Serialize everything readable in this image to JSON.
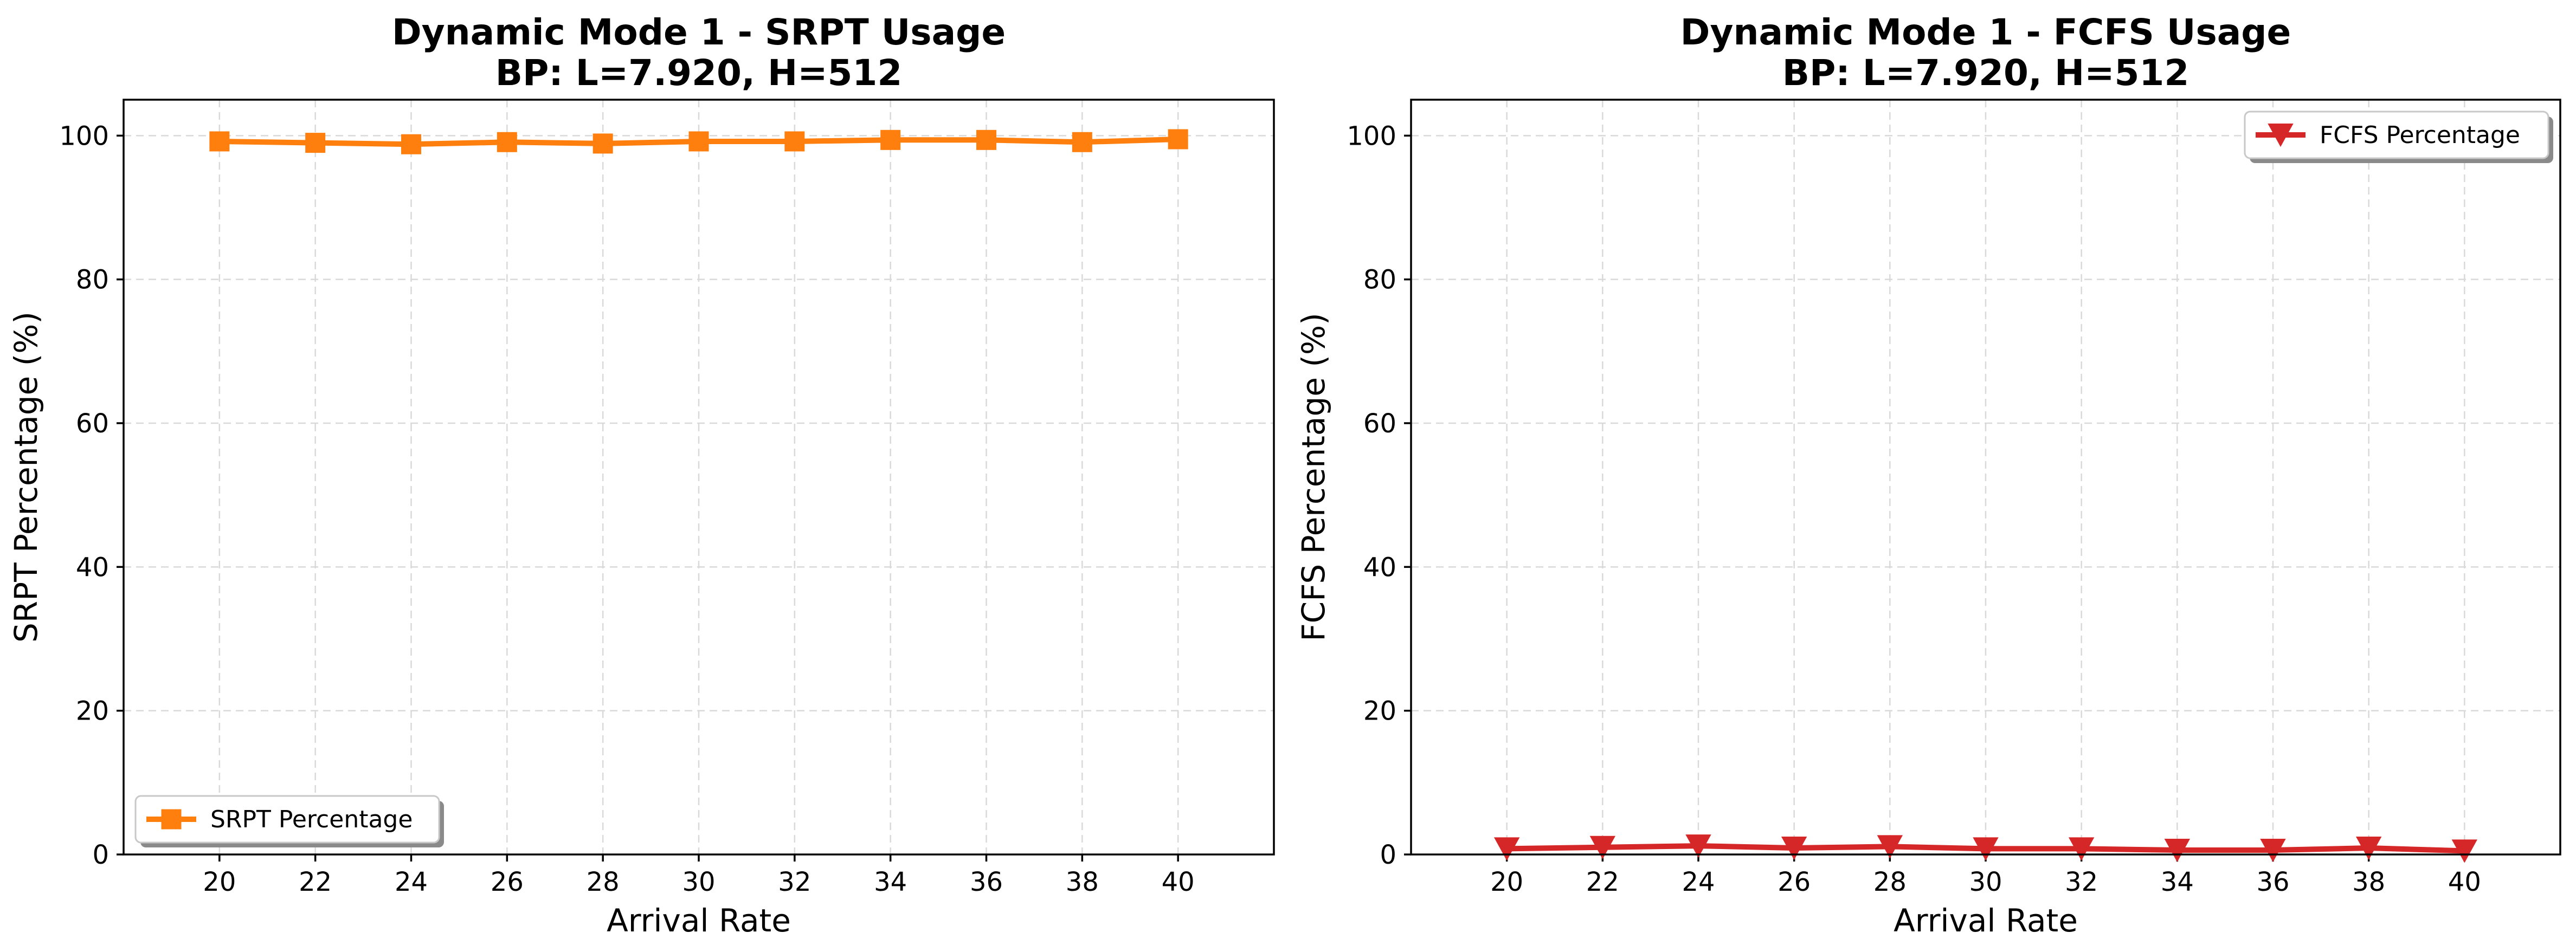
{
  "chart_data": [
    {
      "type": "line",
      "title_line1": "Dynamic Mode 1 - SRPT Usage",
      "title_line2": "BP: L=7.920, H=512",
      "xlabel": "Arrival Rate",
      "ylabel": "SRPT Percentage (%)",
      "x": [
        20,
        22,
        24,
        26,
        28,
        30,
        32,
        34,
        36,
        38,
        40
      ],
      "x_tick_labels": [
        "20",
        "22",
        "24",
        "26",
        "28",
        "30",
        "32",
        "34",
        "36",
        "38",
        "40"
      ],
      "xlim": [
        18,
        42
      ],
      "ylim": [
        0,
        105
      ],
      "y_ticks": [
        0,
        20,
        40,
        60,
        80,
        100
      ],
      "y_tick_labels": [
        "0",
        "20",
        "40",
        "60",
        "80",
        "100"
      ],
      "grid": true,
      "legend_position": "lower-left",
      "series": [
        {
          "name": "SRPT Percentage",
          "color": "#ff7f0e",
          "marker": "square",
          "values": [
            99.2,
            99.0,
            98.8,
            99.1,
            98.9,
            99.2,
            99.2,
            99.4,
            99.4,
            99.1,
            99.5
          ]
        }
      ]
    },
    {
      "type": "line",
      "title_line1": "Dynamic Mode 1 - FCFS Usage",
      "title_line2": "BP: L=7.920, H=512",
      "xlabel": "Arrival Rate",
      "ylabel": "FCFS Percentage (%)",
      "x": [
        20,
        22,
        24,
        26,
        28,
        30,
        32,
        34,
        36,
        38,
        40
      ],
      "x_tick_labels": [
        "20",
        "22",
        "24",
        "26",
        "28",
        "30",
        "32",
        "34",
        "36",
        "38",
        "40"
      ],
      "xlim": [
        18,
        42
      ],
      "ylim": [
        0,
        105
      ],
      "y_ticks": [
        0,
        20,
        40,
        60,
        80,
        100
      ],
      "y_tick_labels": [
        "0",
        "20",
        "40",
        "60",
        "80",
        "100"
      ],
      "grid": true,
      "legend_position": "upper-right",
      "series": [
        {
          "name": "FCFS Percentage",
          "color": "#d62728",
          "marker": "triangle-down",
          "values": [
            0.8,
            1.0,
            1.2,
            0.9,
            1.1,
            0.8,
            0.8,
            0.6,
            0.6,
            0.9,
            0.5
          ]
        }
      ]
    }
  ]
}
